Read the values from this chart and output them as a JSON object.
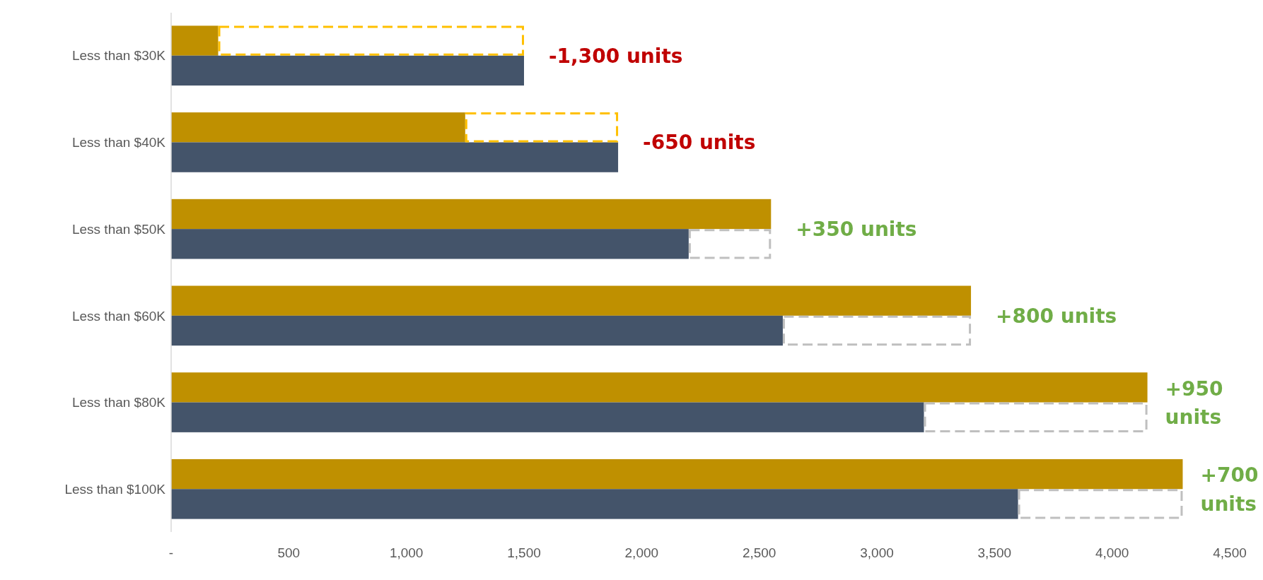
{
  "chart_data": {
    "type": "bar",
    "orientation": "horizontal",
    "categories": [
      "Less than $30K",
      "Less than $40K",
      "Less than $50K",
      "Less than $60K",
      "Less than $80K",
      "Less than $100K"
    ],
    "series": [
      {
        "color": "#bf9000",
        "values": [
          200,
          1250,
          2550,
          3400,
          4150,
          4300
        ]
      },
      {
        "color": "#44546a",
        "values": [
          1500,
          1900,
          2200,
          2600,
          3200,
          3600
        ]
      }
    ],
    "xlim": [
      0,
      4500
    ],
    "xticks": [
      {
        "value": 0,
        "label": "-"
      },
      500,
      {
        "value": 1000,
        "label": "1,000"
      },
      {
        "value": 1500,
        "label": "1,500"
      },
      {
        "value": 2000,
        "label": "2,000"
      },
      {
        "value": 2500,
        "label": "2,500"
      },
      {
        "value": 3000,
        "label": "3,000"
      },
      {
        "value": 3500,
        "label": "3,500"
      },
      {
        "value": 4000,
        "label": "4,000"
      },
      {
        "value": 4500,
        "label": "4,500"
      }
    ],
    "grid": false,
    "annotations": [
      {
        "text": "-1,300 units",
        "x": 1500,
        "y": "Less than $30K"
      },
      {
        "text": "-650 units",
        "x": 1900,
        "y": "Less than $40K"
      },
      {
        "text": "+350 units",
        "x": 2550,
        "y": "Less than $50K"
      },
      {
        "text": "+800 units",
        "x": 3400,
        "y": "Less than $60K"
      },
      {
        "text": "+950 units",
        "x": 4150,
        "y": "Less than $80K"
      },
      {
        "text": "+700 units",
        "x": 4300,
        "y": "Less than $100K"
      }
    ]
  }
}
